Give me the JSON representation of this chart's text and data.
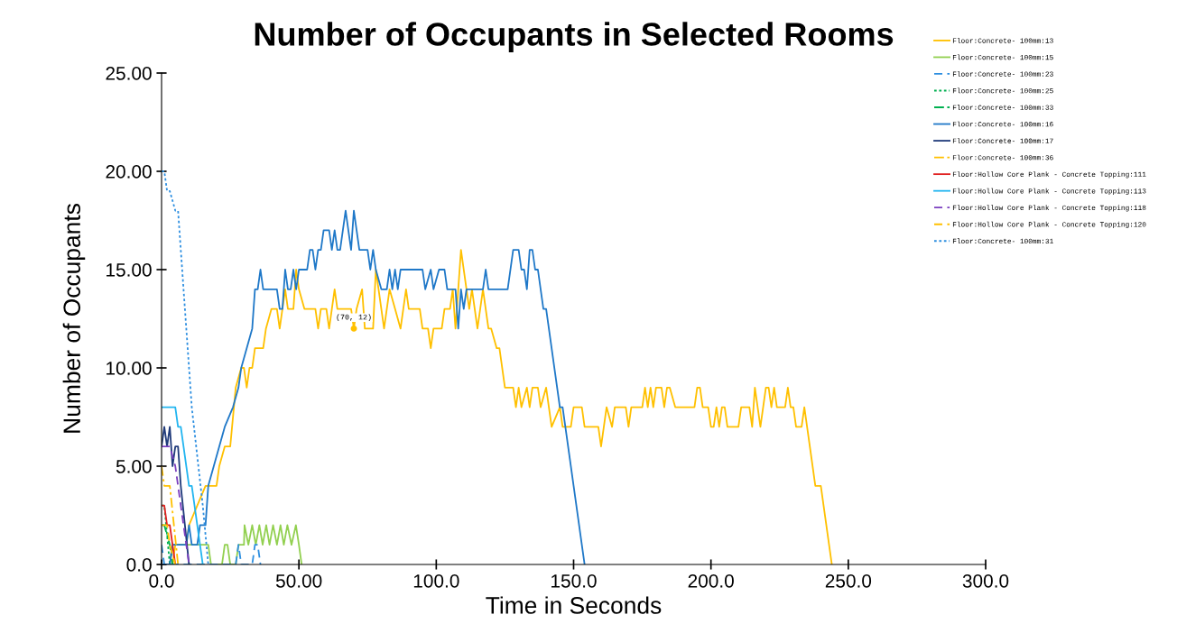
{
  "chart_data": {
    "type": "line",
    "title": "Number of Occupants in Selected Rooms",
    "xlabel": "Time in Seconds",
    "ylabel": "Number of Occupants",
    "xlim": [
      0,
      300
    ],
    "ylim": [
      0,
      25
    ],
    "xticks": [
      {
        "value": 0,
        "label": "0.0"
      },
      {
        "value": 50,
        "label": "50.00"
      },
      {
        "value": 100,
        "label": "100.0"
      },
      {
        "value": 150,
        "label": "150.0"
      },
      {
        "value": 200,
        "label": "200.0"
      },
      {
        "value": 250,
        "label": "250.0"
      },
      {
        "value": 300,
        "label": "300.0"
      }
    ],
    "yticks": [
      {
        "value": 0,
        "label": "0.0"
      },
      {
        "value": 5,
        "label": "5.00"
      },
      {
        "value": 10,
        "label": "10.00"
      },
      {
        "value": 15,
        "label": "15.00"
      },
      {
        "value": 20,
        "label": "20.00"
      },
      {
        "value": 25,
        "label": "25.00"
      }
    ],
    "grid": false,
    "legend": "top right",
    "annotations": [
      {
        "text": "(70, 12)",
        "x": 70,
        "y": 12
      }
    ],
    "series": [
      {
        "name": "Floor:Concrete- 100mm:13",
        "color": "#ffc000",
        "line_style": "solid",
        "x": [
          0,
          4,
          5,
          9,
          10,
          13,
          16,
          20,
          21,
          23,
          25,
          27,
          29,
          30,
          31,
          32,
          33,
          34,
          37,
          38,
          40,
          42,
          43,
          45,
          46,
          48,
          49,
          50,
          52,
          56,
          57,
          58,
          60,
          61,
          62,
          63,
          64,
          69,
          70,
          71,
          73,
          74,
          77,
          78,
          79,
          81,
          83,
          85,
          87,
          89,
          90,
          94,
          95,
          97,
          98,
          99,
          102,
          103,
          105,
          106,
          107,
          109,
          112,
          113,
          115,
          117,
          119,
          120,
          122,
          123,
          125,
          128,
          129,
          130,
          131,
          133,
          134,
          135,
          137,
          138,
          140,
          142,
          145,
          146,
          149,
          150,
          153,
          154,
          159,
          160,
          162,
          164,
          165,
          169,
          170,
          171,
          175,
          176,
          177,
          178,
          179,
          180,
          182,
          183,
          184,
          185,
          187,
          194,
          195,
          196,
          197,
          199,
          200,
          201,
          202,
          203,
          204,
          205,
          206,
          210,
          211,
          214,
          215,
          216,
          218,
          220,
          221,
          222,
          223,
          224,
          227,
          228,
          229,
          230,
          231,
          233,
          234,
          238,
          240,
          244
        ],
        "values": [
          0,
          0,
          1,
          1,
          2,
          3,
          4,
          4,
          5,
          6,
          6,
          9,
          10,
          10,
          9,
          10,
          10,
          11,
          11,
          12,
          13,
          13,
          12,
          14,
          13,
          13,
          15,
          14,
          13,
          13,
          12,
          13,
          13,
          12,
          13,
          14,
          13,
          13,
          12,
          13,
          14,
          12,
          12,
          15,
          14,
          12,
          14,
          13,
          12,
          14,
          13,
          13,
          12,
          12,
          11,
          12,
          12,
          13,
          13,
          14,
          12,
          16,
          13,
          14,
          12,
          14,
          12,
          12,
          11,
          11,
          9,
          9,
          8,
          9,
          8,
          9,
          8,
          9,
          9,
          8,
          9,
          7,
          8,
          7,
          7,
          8,
          8,
          7,
          7,
          6,
          8,
          7,
          8,
          8,
          7,
          8,
          8,
          9,
          8,
          9,
          8,
          9,
          9,
          8,
          9,
          9,
          8,
          8,
          9,
          9,
          8,
          8,
          7,
          7,
          8,
          7,
          8,
          8,
          7,
          7,
          8,
          8,
          7,
          9,
          7,
          9,
          9,
          8,
          9,
          8,
          8,
          9,
          8,
          8,
          7,
          7,
          8,
          4,
          4,
          0
        ]
      },
      {
        "name": "Floor:Concrete- 100mm:15",
        "color": "#92d050",
        "line_style": "solid",
        "x": [
          0,
          3,
          4,
          17,
          18,
          22,
          23,
          24,
          25,
          27,
          28,
          30,
          30.2,
          31.6,
          33,
          34.3,
          35.6,
          36.8,
          38.1,
          39.3,
          40.6,
          42,
          43.3,
          44.5,
          45.8,
          47.3,
          48.9,
          50,
          51
        ],
        "values": [
          0,
          0,
          1,
          1,
          0,
          0,
          1,
          1,
          0,
          0,
          1,
          1,
          2,
          1,
          2,
          1,
          2,
          1,
          2,
          1,
          2,
          1,
          2,
          1,
          2,
          1,
          2,
          1,
          0
        ]
      },
      {
        "name": "Floor:Concrete- 100mm:23",
        "color": "#2e8fe0",
        "line_style": "dashed",
        "x": [
          0,
          1,
          27,
          28,
          29,
          33,
          34,
          35,
          36
        ],
        "values": [
          1,
          0,
          0,
          1,
          0,
          0,
          1,
          1,
          0
        ]
      },
      {
        "name": "Floor:Concrete- 100mm:25",
        "color": "#00b050",
        "line_style": "dotted",
        "x": [
          0,
          1,
          3
        ],
        "values": [
          3,
          3,
          0
        ]
      },
      {
        "name": "Floor:Concrete- 100mm:33",
        "color": "#00b050",
        "line_style": "dashdot",
        "x": [
          0,
          1,
          3,
          4
        ],
        "values": [
          2,
          2,
          1,
          0
        ]
      },
      {
        "name": "Floor:Concrete- 100mm:16",
        "color": "#1f78c8",
        "line_style": "solid",
        "x": [
          0,
          3,
          4,
          9,
          10,
          11,
          13,
          14,
          16,
          17,
          19,
          21,
          23,
          26,
          28,
          29,
          31,
          33,
          34,
          35,
          36,
          37,
          42,
          43,
          44,
          45,
          46,
          47,
          48,
          49,
          50,
          53,
          54,
          55,
          56,
          57,
          58,
          59,
          61,
          62,
          63,
          64,
          65,
          67,
          69,
          70,
          72,
          75,
          76,
          77,
          78,
          80,
          82,
          83,
          84,
          85,
          86,
          87,
          95,
          96,
          98,
          99,
          101,
          103,
          104,
          107,
          108,
          109,
          110,
          111,
          117,
          118,
          119,
          126,
          128,
          130,
          131,
          132,
          133,
          134,
          135,
          136,
          137,
          139,
          140,
          145,
          146,
          154
        ],
        "values": [
          0,
          0,
          1,
          1,
          2,
          1,
          1,
          2,
          2,
          4,
          5,
          6,
          7,
          8,
          9,
          10,
          11,
          12,
          14,
          14,
          15,
          14,
          14,
          13,
          13,
          15,
          14,
          14,
          15,
          14,
          15,
          15,
          16,
          16,
          15,
          16,
          16,
          17,
          17,
          16,
          17,
          16,
          16,
          18,
          16,
          18,
          16,
          16,
          15,
          16,
          15,
          14,
          14,
          15,
          14,
          15,
          14,
          15,
          15,
          14,
          15,
          14,
          15,
          15,
          14,
          14,
          12,
          14,
          13,
          14,
          14,
          15,
          14,
          14,
          16,
          16,
          15,
          15,
          14,
          16,
          16,
          15,
          15,
          13,
          13,
          8,
          8,
          0
        ]
      },
      {
        "name": "Floor:Concrete- 100mm:17",
        "color": "#1f3a7a",
        "line_style": "solid",
        "x": [
          0,
          1,
          2,
          3,
          4,
          5,
          6,
          7,
          10
        ],
        "values": [
          6,
          7,
          6,
          7,
          5,
          6,
          6,
          4,
          0
        ]
      },
      {
        "name": "Floor:Concrete- 100mm:36",
        "color": "#ffc000",
        "line_style": "dashdot",
        "x": [
          0,
          1,
          3,
          6
        ],
        "values": [
          5,
          4,
          4,
          0
        ]
      },
      {
        "name": "Floor:Hollow Core Plank - Concrete Topping:111",
        "color": "#e02020",
        "line_style": "solid",
        "x": [
          0,
          1,
          2,
          3,
          5
        ],
        "values": [
          3,
          3,
          2,
          2,
          0
        ]
      },
      {
        "name": "Floor:Hollow Core Plank - Concrete Topping:113",
        "color": "#22b5f0",
        "line_style": "solid",
        "x": [
          0,
          5,
          6,
          7,
          10,
          11,
          15
        ],
        "values": [
          8,
          8,
          7,
          7,
          4,
          4,
          0
        ]
      },
      {
        "name": "Floor:Hollow Core Plank - Concrete Topping:118",
        "color": "#7b3fbf",
        "line_style": "dashed",
        "x": [
          0,
          3,
          5,
          10
        ],
        "values": [
          6,
          6,
          5,
          0
        ]
      },
      {
        "name": "Floor:Hollow Core Plank - Concrete Topping:120",
        "color": "#ffc000",
        "line_style": "dashed",
        "x": [
          0,
          2,
          3,
          5
        ],
        "values": [
          2,
          2,
          1,
          0
        ]
      },
      {
        "name": "Floor:Concrete- 100mm:31",
        "color": "#2e8fe0",
        "line_style": "dotted",
        "x": [
          0,
          1,
          2,
          3,
          5,
          6,
          8,
          11,
          15,
          17
        ],
        "values": [
          20,
          20,
          19,
          19,
          18,
          18,
          14,
          8,
          3,
          0
        ]
      }
    ]
  }
}
